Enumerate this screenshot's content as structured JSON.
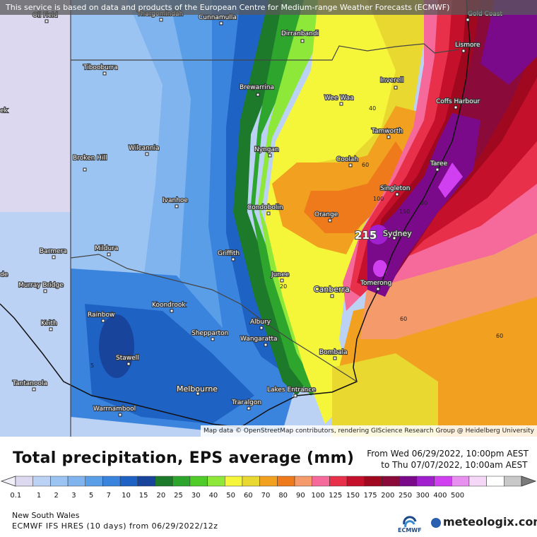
{
  "banner": "This service is based on data and products of the European Centre for Medium-range Weather Forecasts (ECMWF)",
  "attribution": "Map data © OpenStreetMap contributors, rendering GIScience Research Group @ Heidelberg University",
  "title": "Total precipitation, EPS average (mm)",
  "period": {
    "from": "From Wed 06/29/2022, 10:00pm AEST",
    "to": "to Thu 07/07/2022, 10:00am AEST"
  },
  "region": "New South Wales",
  "model_info": "ECMWF IFS HRES (10 days) from 06/29/2022/12z",
  "logos": {
    "ecmwf": "ECMWF",
    "meteologix": "meteologix.com"
  },
  "legend": {
    "levels": [
      "0.1",
      "1",
      "2",
      "3",
      "5",
      "7",
      "10",
      "15",
      "20",
      "25",
      "30",
      "40",
      "50",
      "60",
      "70",
      "80",
      "90",
      "100",
      "125",
      "150",
      "175",
      "200",
      "250",
      "300",
      "400",
      "500"
    ],
    "colors": [
      "#dcd8ef",
      "#bcd2f5",
      "#9cc4f2",
      "#7fb4ee",
      "#5a9ee8",
      "#3a84de",
      "#1e62c4",
      "#19449c",
      "#1d7a2a",
      "#2ea62e",
      "#50cc2a",
      "#8ee83a",
      "#f5f53a",
      "#e8d830",
      "#f2a020",
      "#ef7a1c",
      "#f59a6a",
      "#f56a9a",
      "#e8304a",
      "#c4102a",
      "#a00820",
      "#8a0a3a",
      "#7a0a8a",
      "#a020d0",
      "#d040f0",
      "#e890f0",
      "#f5d8f8",
      "#ffffff",
      "#c8c8c8"
    ]
  },
  "map": {
    "max_value_label": "215",
    "contour_labels": [
      "40",
      "60",
      "100",
      "150",
      "80",
      "60",
      "20",
      "5"
    ],
    "cities": [
      {
        "name": "Oil Field"
      },
      {
        "name": "Thargomindah"
      },
      {
        "name": "Cunnamulla"
      },
      {
        "name": "Dirranbandi"
      },
      {
        "name": "Gold Coast"
      },
      {
        "name": "Lismore"
      },
      {
        "name": "Tibooburra"
      },
      {
        "name": "Brewarrina"
      },
      {
        "name": "Inverell"
      },
      {
        "name": "Wee Waa"
      },
      {
        "name": "Coffs Harbour"
      },
      {
        "name": "Tamworth"
      },
      {
        "name": "Wilcannia"
      },
      {
        "name": "Nyngan"
      },
      {
        "name": "Broken Hill"
      },
      {
        "name": "Coolah"
      },
      {
        "name": "Taree"
      },
      {
        "name": "Singleton"
      },
      {
        "name": "Ivanhoe"
      },
      {
        "name": "Condobolin"
      },
      {
        "name": "Orange"
      },
      {
        "name": "Sydney"
      },
      {
        "name": "Barmera"
      },
      {
        "name": "Mildura"
      },
      {
        "name": "Griffith"
      },
      {
        "name": "Junee"
      },
      {
        "name": "Tomerong"
      },
      {
        "name": "Canberra"
      },
      {
        "name": "Murray Bridge"
      },
      {
        "name": "Rainbow"
      },
      {
        "name": "Koondrook"
      },
      {
        "name": "Keith"
      },
      {
        "name": "Albury"
      },
      {
        "name": "Shepparton"
      },
      {
        "name": "Wangaratta"
      },
      {
        "name": "Bombala"
      },
      {
        "name": "Stawell"
      },
      {
        "name": "Tantanoola"
      },
      {
        "name": "Melbourne"
      },
      {
        "name": "Lakes Entrance"
      },
      {
        "name": "Warrnambool"
      },
      {
        "name": "Traralgon"
      },
      {
        "name": "ek"
      },
      {
        "name": "de"
      }
    ]
  }
}
